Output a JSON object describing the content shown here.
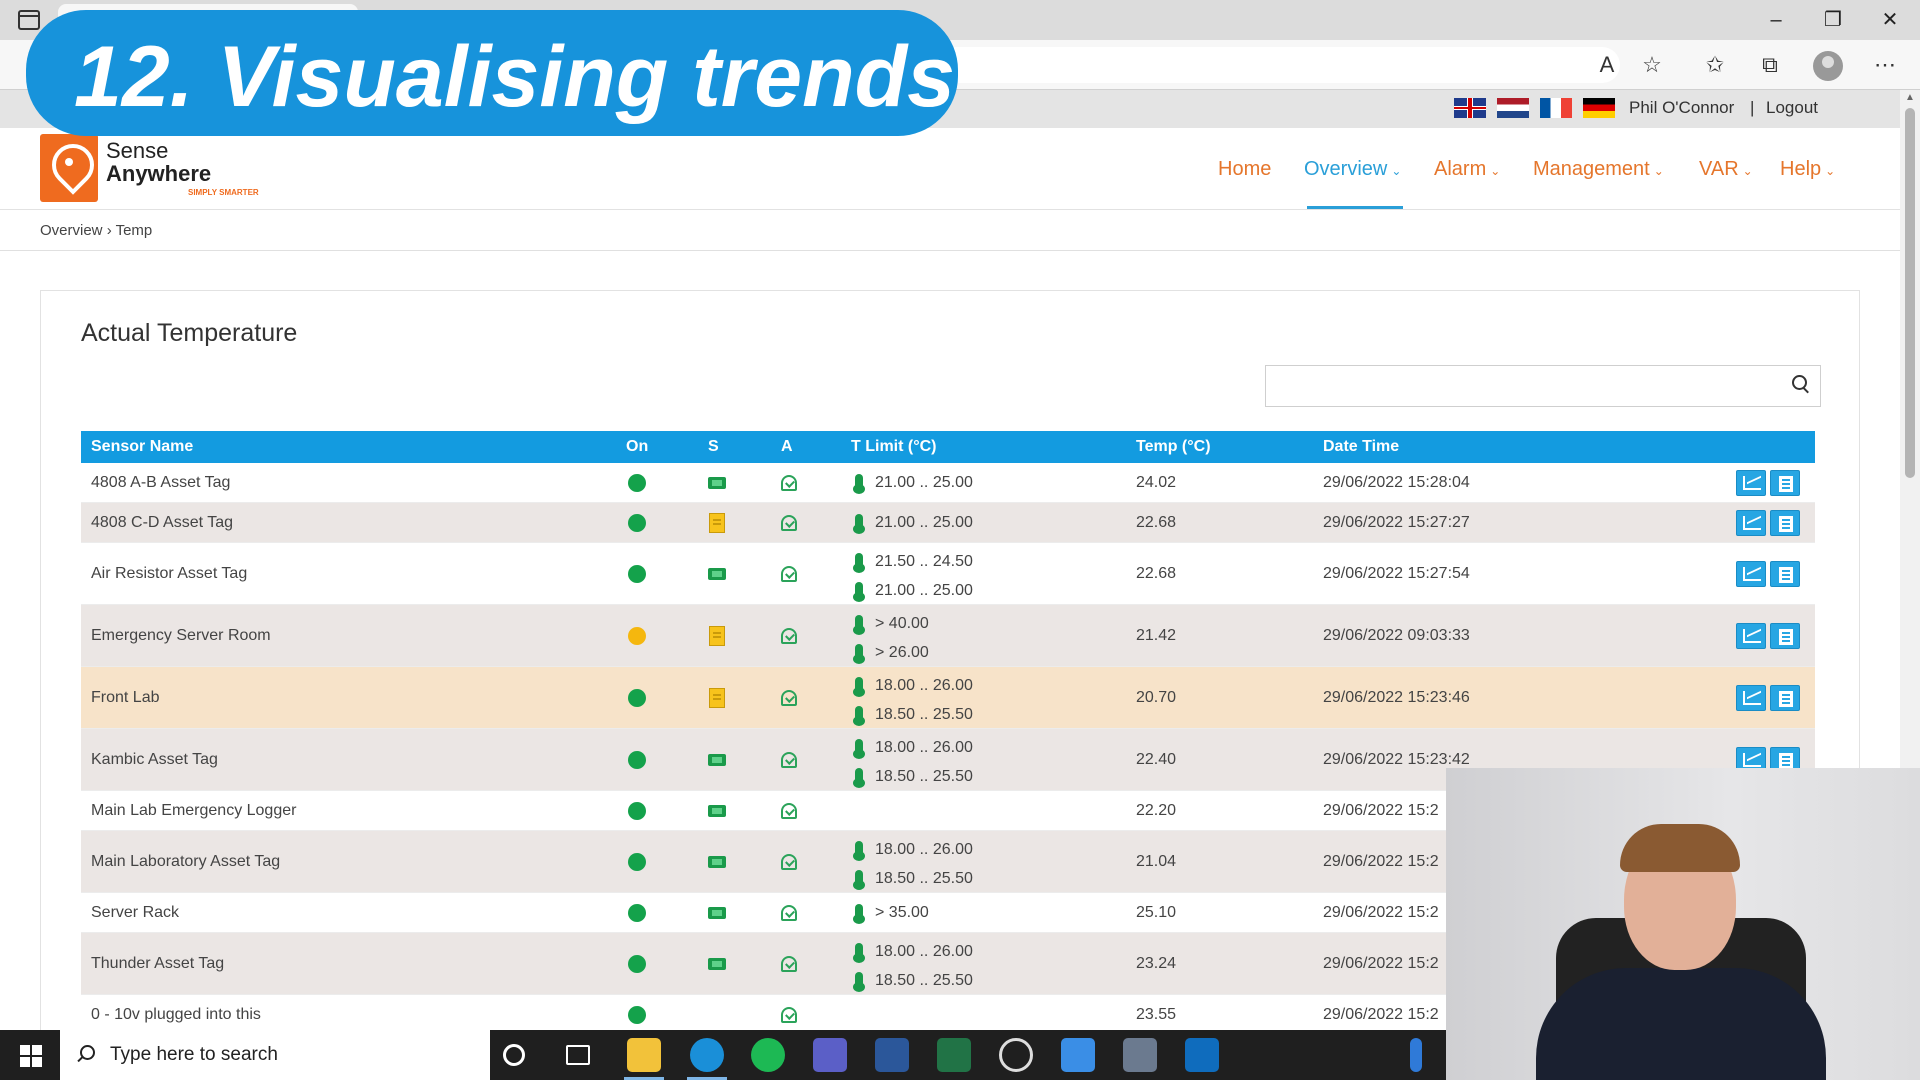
{
  "overlay_title": "12. Visualising trends",
  "util_bar": {
    "user": "Phil O'Connor",
    "separator": "|",
    "logout": "Logout"
  },
  "logo": {
    "line1": "Sense",
    "line2": "Anywhere",
    "tagline": "SIMPLY SMARTER"
  },
  "nav": [
    {
      "label": "Home",
      "has_menu": false
    },
    {
      "label": "Overview",
      "has_menu": true,
      "active": true
    },
    {
      "label": "Alarm",
      "has_menu": true
    },
    {
      "label": "Management",
      "has_menu": true
    },
    {
      "label": "VAR",
      "has_menu": true
    },
    {
      "label": "Help",
      "has_menu": true
    }
  ],
  "breadcrumb": {
    "parent": "Overview",
    "sep": "›",
    "current": "Temp"
  },
  "card": {
    "title": "Actual Temperature",
    "search_placeholder": ""
  },
  "table": {
    "headers": {
      "name": "Sensor Name",
      "on": "On",
      "s": "S",
      "a": "A",
      "limit": "T Limit (°C)",
      "temp": "Temp (°C)",
      "datetime": "Date Time"
    },
    "rows": [
      {
        "name": "4808 A-B Asset Tag",
        "on": "ok",
        "s": "battery",
        "limits": [
          "21.00 .. 25.00"
        ],
        "temp": "24.02",
        "datetime": "29/06/2022 15:28:04",
        "style": "normal"
      },
      {
        "name": "4808 C-D Asset Tag",
        "on": "ok",
        "s": "doc",
        "limits": [
          "21.00 .. 25.00"
        ],
        "temp": "22.68",
        "datetime": "29/06/2022 15:27:27",
        "style": "alt"
      },
      {
        "name": "Air Resistor Asset Tag",
        "on": "ok",
        "s": "battery",
        "limits": [
          "21.50 .. 24.50",
          "21.00 .. 25.00"
        ],
        "temp": "22.68",
        "datetime": "29/06/2022 15:27:54",
        "style": "normal"
      },
      {
        "name": "Emergency Server Room",
        "on": "warn",
        "s": "doc",
        "limits": [
          "> 40.00",
          "> 26.00"
        ],
        "temp": "21.42",
        "datetime": "29/06/2022 09:03:33",
        "style": "alt"
      },
      {
        "name": "Front Lab",
        "on": "ok",
        "s": "doc",
        "limits": [
          "18.00 .. 26.00",
          "18.50 .. 25.50"
        ],
        "temp": "20.70",
        "datetime": "29/06/2022 15:23:46",
        "style": "hl"
      },
      {
        "name": "Kambic Asset Tag",
        "on": "ok",
        "s": "battery",
        "limits": [
          "18.00 .. 26.00",
          "18.50 .. 25.50"
        ],
        "temp": "22.40",
        "datetime": "29/06/2022 15:23:42",
        "style": "alt"
      },
      {
        "name": "Main Lab Emergency Logger",
        "on": "ok",
        "s": "battery",
        "limits": [],
        "temp": "22.20",
        "datetime": "29/06/2022 15:2",
        "style": "normal"
      },
      {
        "name": "Main Laboratory Asset Tag",
        "on": "ok",
        "s": "battery",
        "limits": [
          "18.00 .. 26.00",
          "18.50 .. 25.50"
        ],
        "temp": "21.04",
        "datetime": "29/06/2022 15:2",
        "style": "alt"
      },
      {
        "name": "Server Rack",
        "on": "ok",
        "s": "battery",
        "limits": [
          "> 35.00"
        ],
        "temp": "25.10",
        "datetime": "29/06/2022 15:2",
        "style": "normal"
      },
      {
        "name": "Thunder Asset Tag",
        "on": "ok",
        "s": "battery",
        "limits": [
          "18.00 .. 26.00",
          "18.50 .. 25.50"
        ],
        "temp": "23.24",
        "datetime": "29/06/2022 15:2",
        "style": "alt"
      },
      {
        "name": "0 - 10v plugged into this",
        "on": "ok",
        "s": "",
        "limits": [],
        "temp": "23.55",
        "datetime": "29/06/2022 15:2",
        "style": "normal"
      }
    ]
  },
  "taskbar": {
    "search_text": "Type here to search"
  },
  "colors": {
    "accent_blue": "#139be0",
    "nav_orange": "#e5762c",
    "ok_green": "#14a24b",
    "warn_yellow": "#f5b70e"
  }
}
